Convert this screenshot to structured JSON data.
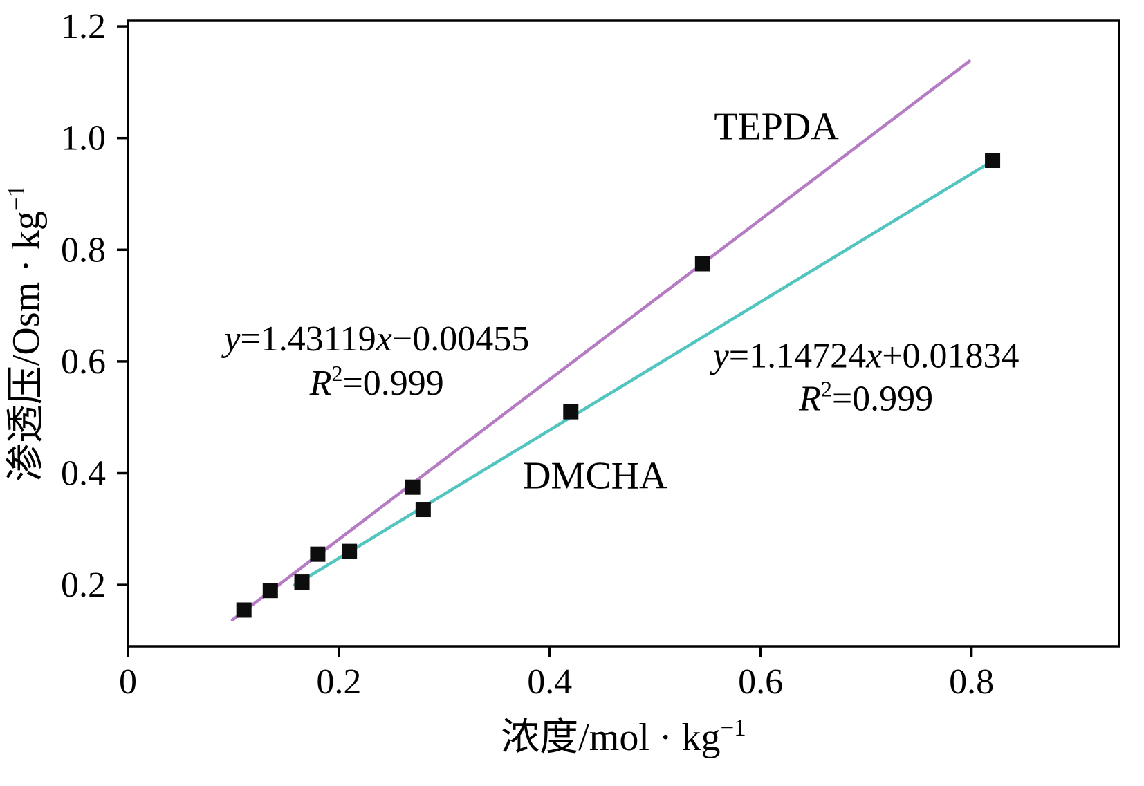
{
  "chart_data": {
    "type": "scatter",
    "title": "",
    "xlabel_segments": [
      {
        "t": "浓度/mol · kg"
      },
      {
        "t": "−1",
        "sup": true
      }
    ],
    "ylabel_segments": [
      {
        "t": "渗透压/Osm · kg"
      },
      {
        "t": "−1",
        "sup": true
      }
    ],
    "xlim": [
      0,
      0.94
    ],
    "ylim": [
      0.09,
      1.21
    ],
    "grid": false,
    "legend": "inline-labels",
    "x_ticks": {
      "values": [
        0,
        0.2,
        0.4,
        0.6,
        0.8
      ],
      "labels": [
        "0",
        "0.2",
        "0.4",
        "0.6",
        "0.8"
      ]
    },
    "y_ticks": {
      "values": [
        0.2,
        0.4,
        0.6,
        0.8,
        1.0,
        1.2
      ],
      "labels": [
        "0.2",
        "0.4",
        "0.6",
        "0.8",
        "1.0",
        "1.2"
      ]
    },
    "frame_color": "#000000",
    "background": "#ffffff",
    "marker": {
      "shape": "square",
      "color": "#0d0d0d",
      "size": 22
    },
    "series": [
      {
        "name": "TEPDA",
        "color": "#b57bc3",
        "fit_equation": "y=1.43119x−0.00455",
        "r_squared": "R2=0.999",
        "slope": 1.43119,
        "intercept": -0.00455,
        "fit_x_range": [
          0.099,
          0.798
        ],
        "points": [
          [
            0.11,
            0.155
          ],
          [
            0.135,
            0.19
          ],
          [
            0.18,
            0.255
          ],
          [
            0.27,
            0.375
          ],
          [
            0.545,
            0.775
          ]
        ]
      },
      {
        "name": "DMCHA",
        "color": "#52c5c0",
        "fit_equation": "y=1.14724x+0.01834",
        "r_squared": "R2=0.999",
        "slope": 1.14724,
        "intercept": 0.01834,
        "fit_x_range": [
          0.158,
          0.825
        ],
        "points": [
          [
            0.165,
            0.205
          ],
          [
            0.21,
            0.26
          ],
          [
            0.28,
            0.335
          ],
          [
            0.42,
            0.51
          ],
          [
            0.82,
            0.96
          ]
        ]
      }
    ],
    "annotations": [
      {
        "name": "tepda-series-label",
        "x": 0.615,
        "y": 1.022,
        "size": 56,
        "segments": [
          {
            "t": "TEPDA"
          }
        ]
      },
      {
        "name": "dmcha-series-label",
        "x": 0.443,
        "y": 0.397,
        "size": 56,
        "segments": [
          {
            "t": "DMCHA"
          }
        ]
      },
      {
        "name": "tepda-equation",
        "x": 0.236,
        "y": 0.642,
        "size": 52,
        "segments": [
          {
            "t": "y",
            "italic": true
          },
          {
            "t": "=1.43119"
          },
          {
            "t": "x",
            "italic": true
          },
          {
            "t": "−0.00455"
          }
        ]
      },
      {
        "name": "tepda-r-squared",
        "x": 0.236,
        "y": 0.563,
        "size": 52,
        "segments": [
          {
            "t": "R",
            "italic": true
          },
          {
            "t": "2",
            "sup": true
          },
          {
            "t": "=0.999"
          }
        ]
      },
      {
        "name": "dmcha-equation",
        "x": 0.7,
        "y": 0.612,
        "size": 52,
        "segments": [
          {
            "t": "y",
            "italic": true
          },
          {
            "t": "=1.14724"
          },
          {
            "t": "x",
            "italic": true
          },
          {
            "t": "+0.01834"
          }
        ]
      },
      {
        "name": "dmcha-r-squared",
        "x": 0.7,
        "y": 0.535,
        "size": 52,
        "segments": [
          {
            "t": "R",
            "italic": true
          },
          {
            "t": "2",
            "sup": true
          },
          {
            "t": "=0.999"
          }
        ]
      }
    ]
  }
}
